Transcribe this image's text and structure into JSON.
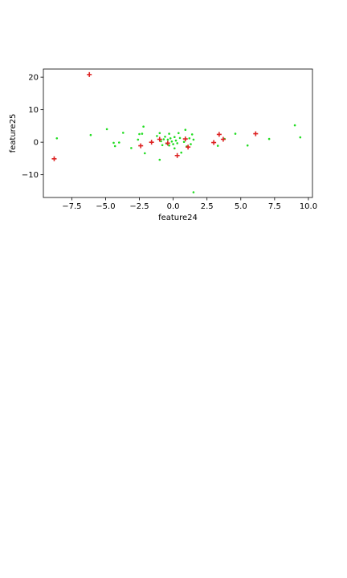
{
  "chart_data": {
    "type": "scatter",
    "title": "",
    "xlabel": "feature24",
    "ylabel": "feature25",
    "xlim": [
      -9.6,
      10.3
    ],
    "ylim": [
      -17,
      22.5
    ],
    "xticks": [
      -7.5,
      -5.0,
      -2.5,
      0.0,
      2.5,
      5.0,
      7.5,
      10.0
    ],
    "xtick_labels": [
      "−7.5",
      "−5.0",
      "−2.5",
      "0.0",
      "2.5",
      "5.0",
      "7.5",
      "10.0"
    ],
    "yticks": [
      -10,
      0,
      10,
      20
    ],
    "ytick_labels": [
      "−10",
      "0",
      "10",
      "20"
    ],
    "grid": false,
    "colors": {
      "inlier": "#22dd22",
      "outlier": "#dd2222"
    },
    "series": [
      {
        "marker": "dot",
        "points": [
          [
            -8.6,
            1.2
          ],
          [
            -6.1,
            2.2
          ],
          [
            -4.9,
            4.0
          ],
          [
            -4.4,
            -0.2
          ],
          [
            -4.3,
            -1.2
          ],
          [
            -4.0,
            -0.1
          ],
          [
            -3.7,
            2.9
          ],
          [
            -3.1,
            -1.8
          ],
          [
            -2.6,
            0.8
          ],
          [
            -2.5,
            2.5
          ],
          [
            -2.3,
            2.6
          ],
          [
            -2.2,
            4.8
          ],
          [
            -2.1,
            -3.4
          ],
          [
            -1.2,
            1.9
          ],
          [
            -1.0,
            2.8
          ],
          [
            -1.0,
            -5.4
          ],
          [
            -0.9,
            0.3
          ],
          [
            -0.8,
            -0.9
          ],
          [
            -0.7,
            0.9
          ],
          [
            -0.6,
            1.7
          ],
          [
            -0.5,
            -0.4
          ],
          [
            -0.4,
            0.8
          ],
          [
            -0.3,
            2.6
          ],
          [
            -0.3,
            -1.0
          ],
          [
            -0.2,
            1.2
          ],
          [
            -0.1,
            0.2
          ],
          [
            0.0,
            -0.6
          ],
          [
            0.1,
            1.6
          ],
          [
            0.1,
            -1.9
          ],
          [
            0.2,
            0.5
          ],
          [
            0.3,
            -0.3
          ],
          [
            0.4,
            2.8
          ],
          [
            0.5,
            1.3
          ],
          [
            0.6,
            -3.2
          ],
          [
            0.8,
            0.1
          ],
          [
            0.9,
            3.8
          ],
          [
            1.0,
            -1.3
          ],
          [
            1.2,
            1.2
          ],
          [
            1.3,
            -0.6
          ],
          [
            1.4,
            2.4
          ],
          [
            1.5,
            0.8
          ],
          [
            1.5,
            -15.4
          ],
          [
            3.3,
            -1.1
          ],
          [
            3.8,
            1.0
          ],
          [
            4.6,
            2.6
          ],
          [
            5.5,
            -1.0
          ],
          [
            7.1,
            1.0
          ],
          [
            9.0,
            5.2
          ],
          [
            9.4,
            1.5
          ]
        ]
      },
      {
        "marker": "plus",
        "points": [
          [
            -8.8,
            -5.1
          ],
          [
            -6.2,
            20.8
          ],
          [
            -2.4,
            -1.1
          ],
          [
            -1.6,
            0.0
          ],
          [
            -1.0,
            0.9
          ],
          [
            -0.4,
            -0.3
          ],
          [
            0.3,
            -4.1
          ],
          [
            0.9,
            1.0
          ],
          [
            1.1,
            -1.5
          ],
          [
            3.0,
            -0.1
          ],
          [
            3.4,
            2.4
          ],
          [
            3.7,
            0.9
          ],
          [
            6.1,
            2.6
          ]
        ]
      }
    ]
  }
}
